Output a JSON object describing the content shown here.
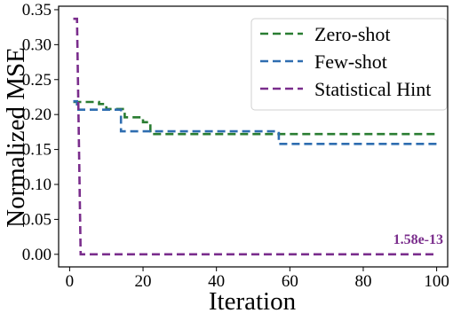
{
  "chart_data": {
    "type": "line",
    "xlabel": "Iteration",
    "ylabel": "Normalized MSE",
    "xlim": [
      -3,
      103
    ],
    "ylim": [
      -0.018,
      0.355
    ],
    "xticks": [
      "0",
      "20",
      "40",
      "60",
      "80",
      "100"
    ],
    "yticks": [
      "0.00",
      "0.05",
      "0.10",
      "0.15",
      "0.20",
      "0.25",
      "0.30",
      "0.35"
    ],
    "grid": false,
    "legend_position": "top-right",
    "line_style": "dashed",
    "series": [
      {
        "name": "Zero-shot",
        "color": "#2a7d32",
        "x": [
          1,
          8,
          8,
          10,
          10,
          15,
          15,
          20,
          20,
          22,
          22,
          100
        ],
        "y": [
          0.218,
          0.218,
          0.215,
          0.215,
          0.208,
          0.208,
          0.196,
          0.196,
          0.189,
          0.189,
          0.172,
          0.172
        ]
      },
      {
        "name": "Few-shot",
        "color": "#2e6db0",
        "x": [
          1,
          2,
          2,
          14,
          14,
          57,
          57,
          100
        ],
        "y": [
          0.219,
          0.219,
          0.207,
          0.207,
          0.176,
          0.176,
          0.158,
          0.158
        ]
      },
      {
        "name": "Statistical Hint",
        "color": "#7a2d8c",
        "x": [
          1,
          2,
          3,
          100
        ],
        "y": [
          0.337,
          0.337,
          0.0,
          0.0
        ]
      }
    ],
    "annotations": [
      {
        "text": "1.58e-13",
        "x": 100,
        "y": 0.0,
        "color": "#7a2d8c"
      }
    ]
  }
}
